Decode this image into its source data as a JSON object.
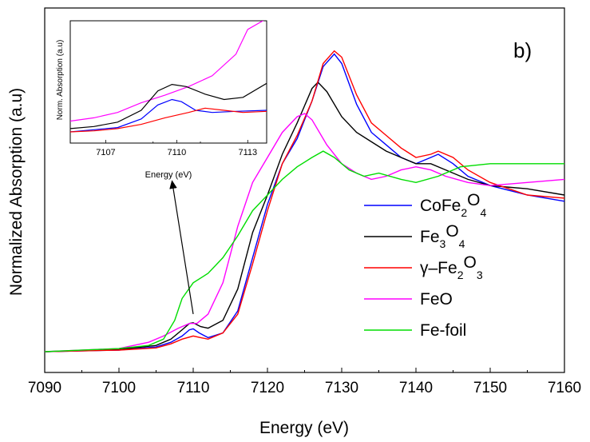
{
  "chart_data": {
    "type": "line",
    "panel_label": "b)",
    "xlabel": "Energy (eV)",
    "ylabel": "Normalized Absorption (a.u)",
    "xlim": [
      7090,
      7160
    ],
    "ylim": [
      0,
      1.0
    ],
    "xticks": [
      7090,
      7100,
      7110,
      7120,
      7130,
      7140,
      7150,
      7160
    ],
    "legend": {
      "placement": "right-middle",
      "entries": [
        {
          "main": "CoFe",
          "sub1": "2",
          "mid": "O",
          "sub2": "4",
          "color": "#0000ff"
        },
        {
          "main": "Fe",
          "sub1": "3",
          "mid": "O",
          "sub2": "4",
          "color": "#000000"
        },
        {
          "main": "γ–Fe",
          "sub1": "2",
          "mid": "O",
          "sub2": "3",
          "color": "#ff0000"
        },
        {
          "main": "FeO",
          "sub1": "",
          "mid": "",
          "sub2": "",
          "color": "#ff00ff"
        },
        {
          "main": "Fe-foil",
          "sub1": "",
          "mid": "",
          "sub2": "",
          "color": "#00dd00"
        }
      ]
    },
    "series": [
      {
        "name": "CoFe2O4",
        "color": "#0000ff",
        "points": [
          [
            7090,
            0.0
          ],
          [
            7100,
            0.005
          ],
          [
            7105,
            0.015
          ],
          [
            7107,
            0.03
          ],
          [
            7108.5,
            0.05
          ],
          [
            7109.5,
            0.07
          ],
          [
            7110,
            0.073
          ],
          [
            7110.8,
            0.06
          ],
          [
            7112,
            0.045
          ],
          [
            7114,
            0.06
          ],
          [
            7116,
            0.13
          ],
          [
            7118,
            0.3
          ],
          [
            7120,
            0.47
          ],
          [
            7122,
            0.6
          ],
          [
            7124,
            0.68
          ],
          [
            7126,
            0.8
          ],
          [
            7127.5,
            0.91
          ],
          [
            7129,
            0.95
          ],
          [
            7130,
            0.92
          ],
          [
            7132,
            0.79
          ],
          [
            7134,
            0.7
          ],
          [
            7136,
            0.66
          ],
          [
            7138,
            0.62
          ],
          [
            7140,
            0.6
          ],
          [
            7142,
            0.62
          ],
          [
            7143,
            0.63
          ],
          [
            7145,
            0.6
          ],
          [
            7147,
            0.56
          ],
          [
            7150,
            0.53
          ],
          [
            7155,
            0.5
          ],
          [
            7160,
            0.48
          ]
        ]
      },
      {
        "name": "Fe3O4",
        "color": "#000000",
        "points": [
          [
            7090,
            0.0
          ],
          [
            7100,
            0.007
          ],
          [
            7105,
            0.02
          ],
          [
            7107,
            0.04
          ],
          [
            7108.5,
            0.07
          ],
          [
            7109.5,
            0.09
          ],
          [
            7110,
            0.092
          ],
          [
            7111,
            0.08
          ],
          [
            7112,
            0.075
          ],
          [
            7114,
            0.1
          ],
          [
            7116,
            0.2
          ],
          [
            7118,
            0.38
          ],
          [
            7120,
            0.5
          ],
          [
            7122,
            0.63
          ],
          [
            7124,
            0.73
          ],
          [
            7126,
            0.84
          ],
          [
            7126.8,
            0.86
          ],
          [
            7128,
            0.83
          ],
          [
            7130,
            0.75
          ],
          [
            7132,
            0.7
          ],
          [
            7134,
            0.67
          ],
          [
            7136,
            0.64
          ],
          [
            7138,
            0.62
          ],
          [
            7140,
            0.6
          ],
          [
            7142,
            0.6
          ],
          [
            7144,
            0.58
          ],
          [
            7147,
            0.55
          ],
          [
            7150,
            0.53
          ],
          [
            7155,
            0.52
          ],
          [
            7160,
            0.5
          ]
        ]
      },
      {
        "name": "γ–Fe2O3",
        "color": "#ff0000",
        "points": [
          [
            7090,
            0.0
          ],
          [
            7100,
            0.005
          ],
          [
            7105,
            0.012
          ],
          [
            7107,
            0.025
          ],
          [
            7108.5,
            0.04
          ],
          [
            7110,
            0.05
          ],
          [
            7111,
            0.045
          ],
          [
            7112,
            0.04
          ],
          [
            7114,
            0.06
          ],
          [
            7116,
            0.12
          ],
          [
            7118,
            0.28
          ],
          [
            7120,
            0.45
          ],
          [
            7122,
            0.6
          ],
          [
            7124,
            0.69
          ],
          [
            7126,
            0.8
          ],
          [
            7127.5,
            0.92
          ],
          [
            7129,
            0.96
          ],
          [
            7130,
            0.94
          ],
          [
            7132,
            0.82
          ],
          [
            7134,
            0.73
          ],
          [
            7136,
            0.69
          ],
          [
            7138,
            0.65
          ],
          [
            7140,
            0.62
          ],
          [
            7142,
            0.63
          ],
          [
            7143,
            0.64
          ],
          [
            7145,
            0.62
          ],
          [
            7147,
            0.58
          ],
          [
            7150,
            0.54
          ],
          [
            7155,
            0.5
          ],
          [
            7160,
            0.49
          ]
        ]
      },
      {
        "name": "FeO",
        "color": "#ff00ff",
        "points": [
          [
            7090,
            0.0
          ],
          [
            7100,
            0.01
          ],
          [
            7104,
            0.03
          ],
          [
            7106,
            0.05
          ],
          [
            7108,
            0.075
          ],
          [
            7109.5,
            0.09
          ],
          [
            7110.5,
            0.09
          ],
          [
            7112,
            0.12
          ],
          [
            7114,
            0.22
          ],
          [
            7116,
            0.4
          ],
          [
            7118,
            0.54
          ],
          [
            7120,
            0.62
          ],
          [
            7122,
            0.7
          ],
          [
            7124,
            0.75
          ],
          [
            7125,
            0.76
          ],
          [
            7126,
            0.74
          ],
          [
            7128,
            0.66
          ],
          [
            7130,
            0.6
          ],
          [
            7132,
            0.57
          ],
          [
            7134,
            0.55
          ],
          [
            7136,
            0.56
          ],
          [
            7138,
            0.58
          ],
          [
            7140,
            0.59
          ],
          [
            7142,
            0.58
          ],
          [
            7144,
            0.56
          ],
          [
            7147,
            0.54
          ],
          [
            7150,
            0.53
          ],
          [
            7155,
            0.54
          ],
          [
            7160,
            0.55
          ]
        ]
      },
      {
        "name": "Fe-foil",
        "color": "#00dd00",
        "points": [
          [
            7090,
            0.0
          ],
          [
            7100,
            0.01
          ],
          [
            7104,
            0.02
          ],
          [
            7106,
            0.04
          ],
          [
            7107.5,
            0.1
          ],
          [
            7108.5,
            0.17
          ],
          [
            7110,
            0.22
          ],
          [
            7112,
            0.25
          ],
          [
            7114,
            0.3
          ],
          [
            7116,
            0.37
          ],
          [
            7118,
            0.45
          ],
          [
            7120,
            0.5
          ],
          [
            7122,
            0.55
          ],
          [
            7124,
            0.59
          ],
          [
            7126,
            0.62
          ],
          [
            7127.5,
            0.64
          ],
          [
            7129,
            0.62
          ],
          [
            7131,
            0.58
          ],
          [
            7133,
            0.56
          ],
          [
            7135,
            0.57
          ],
          [
            7138,
            0.55
          ],
          [
            7140,
            0.54
          ],
          [
            7143,
            0.56
          ],
          [
            7146,
            0.59
          ],
          [
            7150,
            0.6
          ],
          [
            7155,
            0.6
          ],
          [
            7160,
            0.6
          ]
        ]
      }
    ],
    "inset": {
      "xlabel": "Energy (eV)",
      "ylabel": "Norm. Absorption (a.u)",
      "xlim": [
        7105.5,
        7113.8
      ],
      "ylim": [
        0,
        1.0
      ],
      "xticks": [
        7107,
        7109,
        7110,
        7111,
        7113
      ],
      "xtick_labels": [
        "7107",
        "",
        "7110",
        "",
        "7113"
      ],
      "series": [
        {
          "name": "FeO",
          "color": "#ff00ff",
          "points": [
            [
              7105.5,
              0.1
            ],
            [
              7106.5,
              0.13
            ],
            [
              7107.5,
              0.18
            ],
            [
              7108.5,
              0.27
            ],
            [
              7109.5,
              0.34
            ],
            [
              7110.5,
              0.42
            ],
            [
              7111.5,
              0.52
            ],
            [
              7112.5,
              0.72
            ],
            [
              7113,
              0.95
            ],
            [
              7113.8,
              1.05
            ]
          ]
        },
        {
          "name": "Fe3O4",
          "color": "#000000",
          "points": [
            [
              7105.5,
              0.03
            ],
            [
              7106.5,
              0.05
            ],
            [
              7107.5,
              0.09
            ],
            [
              7108.5,
              0.2
            ],
            [
              7109.2,
              0.38
            ],
            [
              7109.8,
              0.44
            ],
            [
              7110.4,
              0.42
            ],
            [
              7111.2,
              0.35
            ],
            [
              7112,
              0.3
            ],
            [
              7112.8,
              0.32
            ],
            [
              7113.8,
              0.45
            ]
          ]
        },
        {
          "name": "CoFe2O4",
          "color": "#0000ff",
          "points": [
            [
              7105.5,
              0.0
            ],
            [
              7106.5,
              0.02
            ],
            [
              7107.5,
              0.04
            ],
            [
              7108.5,
              0.12
            ],
            [
              7109.2,
              0.25
            ],
            [
              7109.8,
              0.3
            ],
            [
              7110.2,
              0.28
            ],
            [
              7110.8,
              0.2
            ],
            [
              7111.5,
              0.18
            ],
            [
              7112.5,
              0.19
            ],
            [
              7113.8,
              0.2
            ]
          ]
        },
        {
          "name": "γ–Fe2O3",
          "color": "#ff0000",
          "points": [
            [
              7105.5,
              0.0
            ],
            [
              7106.5,
              0.01
            ],
            [
              7107.5,
              0.03
            ],
            [
              7108.5,
              0.07
            ],
            [
              7109.5,
              0.13
            ],
            [
              7110.5,
              0.18
            ],
            [
              7111.2,
              0.22
            ],
            [
              7112,
              0.2
            ],
            [
              7112.8,
              0.18
            ],
            [
              7113.8,
              0.19
            ]
          ]
        }
      ]
    },
    "annotation": {
      "type": "arrow",
      "from_x": 7110,
      "to_x": 7108.5
    }
  }
}
